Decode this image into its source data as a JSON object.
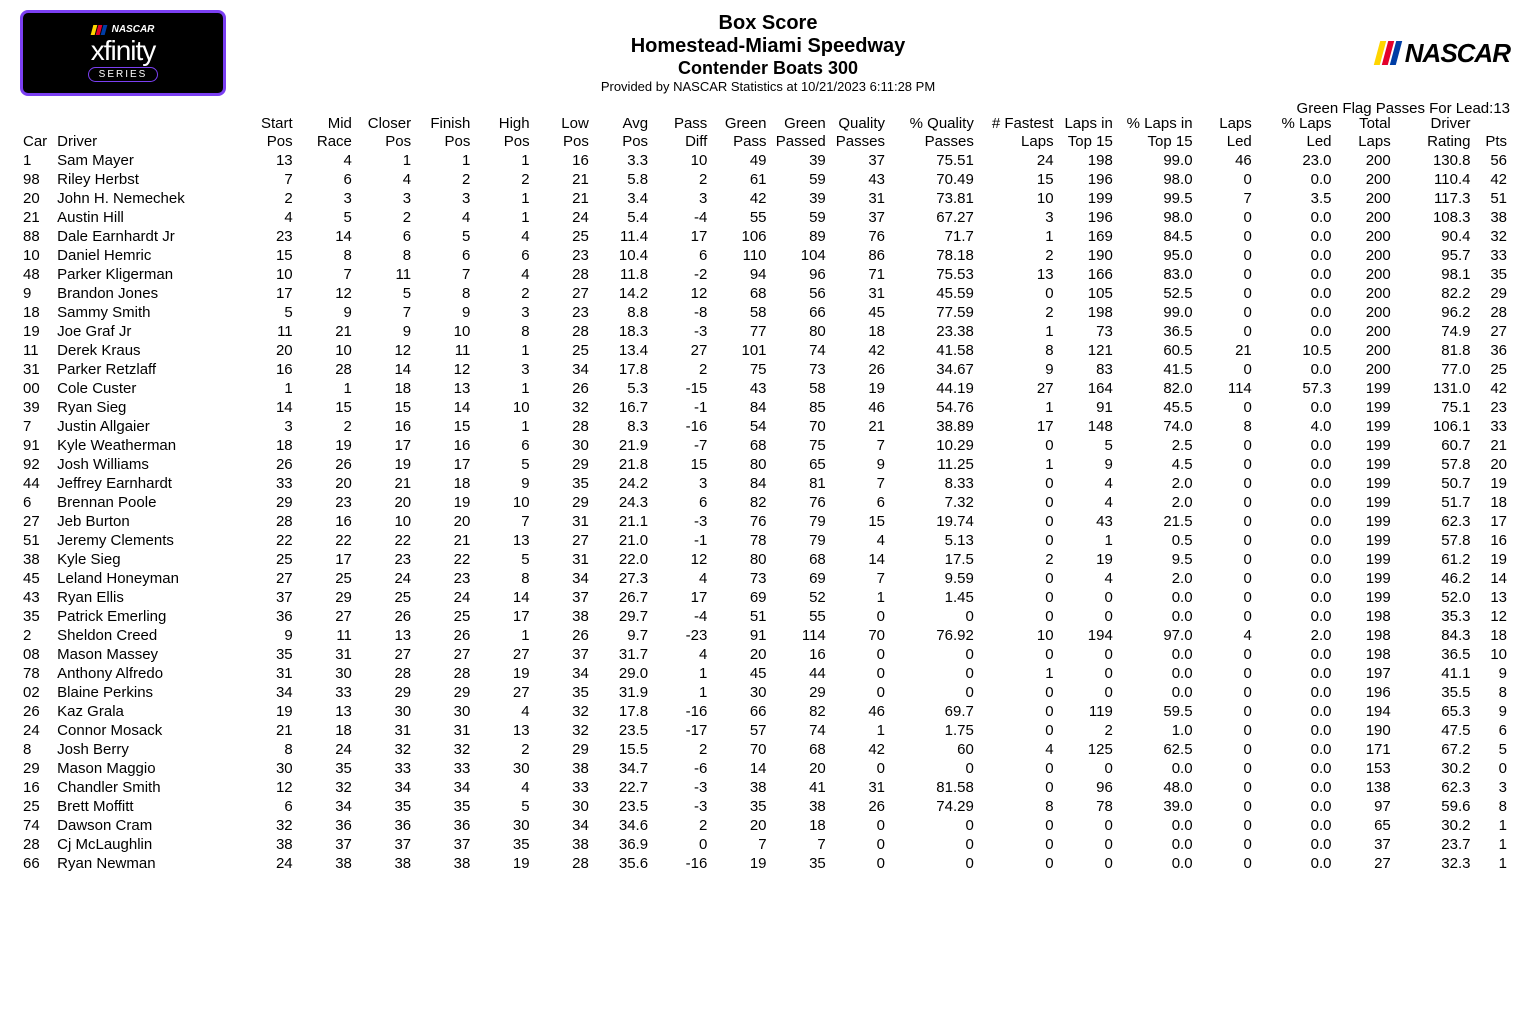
{
  "header": {
    "logo_left": {
      "top": "NASCAR",
      "mid": "xfinity",
      "bottom": "SERIES"
    },
    "title1": "Box Score",
    "title2": "Homestead-Miami Speedway",
    "title3": "Contender Boats 300",
    "provided": "Provided by NASCAR Statistics at 10/21/2023 6:11:28 PM",
    "logo_right": "NASCAR",
    "green_flag_label": "Green Flag Passes For Lead:",
    "green_flag_value": "13",
    "bar_colors": [
      "#ffd500",
      "#e4002b",
      "#003da5"
    ]
  },
  "columns": [
    {
      "l1": "",
      "l2": "Car",
      "cls": "col-car left"
    },
    {
      "l1": "",
      "l2": "Driver",
      "cls": "col-driver left"
    },
    {
      "l1": "Start",
      "l2": "Pos",
      "cls": "col-num"
    },
    {
      "l1": "Mid",
      "l2": "Race",
      "cls": "col-num"
    },
    {
      "l1": "Closer",
      "l2": "Pos",
      "cls": "col-num"
    },
    {
      "l1": "Finish",
      "l2": "Pos",
      "cls": "col-num"
    },
    {
      "l1": "High",
      "l2": "Pos",
      "cls": "col-num"
    },
    {
      "l1": "Low",
      "l2": "Pos",
      "cls": "col-num"
    },
    {
      "l1": "Avg",
      "l2": "Pos",
      "cls": "col-num"
    },
    {
      "l1": "Pass",
      "l2": "Diff",
      "cls": "col-num"
    },
    {
      "l1": "Green",
      "l2": "Pass",
      "cls": "col-num"
    },
    {
      "l1": "Green",
      "l2": "Passed",
      "cls": "col-num"
    },
    {
      "l1": "Quality",
      "l2": "Passes",
      "cls": "col-num"
    },
    {
      "l1": "% Quality",
      "l2": "Passes",
      "cls": "col-wider"
    },
    {
      "l1": "# Fastest",
      "l2": "Laps",
      "cls": "col-wide"
    },
    {
      "l1": "Laps in",
      "l2": "Top 15",
      "cls": "col-num"
    },
    {
      "l1": "% Laps in",
      "l2": "Top 15",
      "cls": "col-wide"
    },
    {
      "l1": "Laps",
      "l2": "Led",
      "cls": "col-num"
    },
    {
      "l1": "% Laps",
      "l2": "Led",
      "cls": "col-wide"
    },
    {
      "l1": "Total",
      "l2": "Laps",
      "cls": "col-num"
    },
    {
      "l1": "Driver",
      "l2": "Rating",
      "cls": "col-wide"
    },
    {
      "l1": "",
      "l2": "Pts",
      "cls": "col-pts"
    }
  ],
  "rows": [
    [
      "1",
      "Sam Mayer",
      "13",
      "4",
      "1",
      "1",
      "1",
      "16",
      "3.3",
      "10",
      "49",
      "39",
      "37",
      "75.51",
      "24",
      "198",
      "99.0",
      "46",
      "23.0",
      "200",
      "130.8",
      "56"
    ],
    [
      "98",
      "Riley Herbst",
      "7",
      "6",
      "4",
      "2",
      "2",
      "21",
      "5.8",
      "2",
      "61",
      "59",
      "43",
      "70.49",
      "15",
      "196",
      "98.0",
      "0",
      "0.0",
      "200",
      "110.4",
      "42"
    ],
    [
      "20",
      "John H. Nemechek",
      "2",
      "3",
      "3",
      "3",
      "1",
      "21",
      "3.4",
      "3",
      "42",
      "39",
      "31",
      "73.81",
      "10",
      "199",
      "99.5",
      "7",
      "3.5",
      "200",
      "117.3",
      "51"
    ],
    [
      "21",
      "Austin Hill",
      "4",
      "5",
      "2",
      "4",
      "1",
      "24",
      "5.4",
      "-4",
      "55",
      "59",
      "37",
      "67.27",
      "3",
      "196",
      "98.0",
      "0",
      "0.0",
      "200",
      "108.3",
      "38"
    ],
    [
      "88",
      "Dale Earnhardt Jr",
      "23",
      "14",
      "6",
      "5",
      "4",
      "25",
      "11.4",
      "17",
      "106",
      "89",
      "76",
      "71.7",
      "1",
      "169",
      "84.5",
      "0",
      "0.0",
      "200",
      "90.4",
      "32"
    ],
    [
      "10",
      "Daniel Hemric",
      "15",
      "8",
      "8",
      "6",
      "6",
      "23",
      "10.4",
      "6",
      "110",
      "104",
      "86",
      "78.18",
      "2",
      "190",
      "95.0",
      "0",
      "0.0",
      "200",
      "95.7",
      "33"
    ],
    [
      "48",
      "Parker Kligerman",
      "10",
      "7",
      "11",
      "7",
      "4",
      "28",
      "11.8",
      "-2",
      "94",
      "96",
      "71",
      "75.53",
      "13",
      "166",
      "83.0",
      "0",
      "0.0",
      "200",
      "98.1",
      "35"
    ],
    [
      "9",
      "Brandon Jones",
      "17",
      "12",
      "5",
      "8",
      "2",
      "27",
      "14.2",
      "12",
      "68",
      "56",
      "31",
      "45.59",
      "0",
      "105",
      "52.5",
      "0",
      "0.0",
      "200",
      "82.2",
      "29"
    ],
    [
      "18",
      "Sammy Smith",
      "5",
      "9",
      "7",
      "9",
      "3",
      "23",
      "8.8",
      "-8",
      "58",
      "66",
      "45",
      "77.59",
      "2",
      "198",
      "99.0",
      "0",
      "0.0",
      "200",
      "96.2",
      "28"
    ],
    [
      "19",
      "Joe Graf Jr",
      "11",
      "21",
      "9",
      "10",
      "8",
      "28",
      "18.3",
      "-3",
      "77",
      "80",
      "18",
      "23.38",
      "1",
      "73",
      "36.5",
      "0",
      "0.0",
      "200",
      "74.9",
      "27"
    ],
    [
      "11",
      "Derek Kraus",
      "20",
      "10",
      "12",
      "11",
      "1",
      "25",
      "13.4",
      "27",
      "101",
      "74",
      "42",
      "41.58",
      "8",
      "121",
      "60.5",
      "21",
      "10.5",
      "200",
      "81.8",
      "36"
    ],
    [
      "31",
      "Parker Retzlaff",
      "16",
      "28",
      "14",
      "12",
      "3",
      "34",
      "17.8",
      "2",
      "75",
      "73",
      "26",
      "34.67",
      "9",
      "83",
      "41.5",
      "0",
      "0.0",
      "200",
      "77.0",
      "25"
    ],
    [
      "00",
      "Cole Custer",
      "1",
      "1",
      "18",
      "13",
      "1",
      "26",
      "5.3",
      "-15",
      "43",
      "58",
      "19",
      "44.19",
      "27",
      "164",
      "82.0",
      "114",
      "57.3",
      "199",
      "131.0",
      "42"
    ],
    [
      "39",
      "Ryan Sieg",
      "14",
      "15",
      "15",
      "14",
      "10",
      "32",
      "16.7",
      "-1",
      "84",
      "85",
      "46",
      "54.76",
      "1",
      "91",
      "45.5",
      "0",
      "0.0",
      "199",
      "75.1",
      "23"
    ],
    [
      "7",
      "Justin Allgaier",
      "3",
      "2",
      "16",
      "15",
      "1",
      "28",
      "8.3",
      "-16",
      "54",
      "70",
      "21",
      "38.89",
      "17",
      "148",
      "74.0",
      "8",
      "4.0",
      "199",
      "106.1",
      "33"
    ],
    [
      "91",
      "Kyle Weatherman",
      "18",
      "19",
      "17",
      "16",
      "6",
      "30",
      "21.9",
      "-7",
      "68",
      "75",
      "7",
      "10.29",
      "0",
      "5",
      "2.5",
      "0",
      "0.0",
      "199",
      "60.7",
      "21"
    ],
    [
      "92",
      "Josh Williams",
      "26",
      "26",
      "19",
      "17",
      "5",
      "29",
      "21.8",
      "15",
      "80",
      "65",
      "9",
      "11.25",
      "1",
      "9",
      "4.5",
      "0",
      "0.0",
      "199",
      "57.8",
      "20"
    ],
    [
      "44",
      "Jeffrey Earnhardt",
      "33",
      "20",
      "21",
      "18",
      "9",
      "35",
      "24.2",
      "3",
      "84",
      "81",
      "7",
      "8.33",
      "0",
      "4",
      "2.0",
      "0",
      "0.0",
      "199",
      "50.7",
      "19"
    ],
    [
      "6",
      "Brennan Poole",
      "29",
      "23",
      "20",
      "19",
      "10",
      "29",
      "24.3",
      "6",
      "82",
      "76",
      "6",
      "7.32",
      "0",
      "4",
      "2.0",
      "0",
      "0.0",
      "199",
      "51.7",
      "18"
    ],
    [
      "27",
      "Jeb Burton",
      "28",
      "16",
      "10",
      "20",
      "7",
      "31",
      "21.1",
      "-3",
      "76",
      "79",
      "15",
      "19.74",
      "0",
      "43",
      "21.5",
      "0",
      "0.0",
      "199",
      "62.3",
      "17"
    ],
    [
      "51",
      "Jeremy Clements",
      "22",
      "22",
      "22",
      "21",
      "13",
      "27",
      "21.0",
      "-1",
      "78",
      "79",
      "4",
      "5.13",
      "0",
      "1",
      "0.5",
      "0",
      "0.0",
      "199",
      "57.8",
      "16"
    ],
    [
      "38",
      "Kyle Sieg",
      "25",
      "17",
      "23",
      "22",
      "5",
      "31",
      "22.0",
      "12",
      "80",
      "68",
      "14",
      "17.5",
      "2",
      "19",
      "9.5",
      "0",
      "0.0",
      "199",
      "61.2",
      "19"
    ],
    [
      "45",
      "Leland Honeyman",
      "27",
      "25",
      "24",
      "23",
      "8",
      "34",
      "27.3",
      "4",
      "73",
      "69",
      "7",
      "9.59",
      "0",
      "4",
      "2.0",
      "0",
      "0.0",
      "199",
      "46.2",
      "14"
    ],
    [
      "43",
      "Ryan Ellis",
      "37",
      "29",
      "25",
      "24",
      "14",
      "37",
      "26.7",
      "17",
      "69",
      "52",
      "1",
      "1.45",
      "0",
      "0",
      "0.0",
      "0",
      "0.0",
      "199",
      "52.0",
      "13"
    ],
    [
      "35",
      "Patrick Emerling",
      "36",
      "27",
      "26",
      "25",
      "17",
      "38",
      "29.7",
      "-4",
      "51",
      "55",
      "0",
      "0",
      "0",
      "0",
      "0.0",
      "0",
      "0.0",
      "198",
      "35.3",
      "12"
    ],
    [
      "2",
      "Sheldon Creed",
      "9",
      "11",
      "13",
      "26",
      "1",
      "26",
      "9.7",
      "-23",
      "91",
      "114",
      "70",
      "76.92",
      "10",
      "194",
      "97.0",
      "4",
      "2.0",
      "198",
      "84.3",
      "18"
    ],
    [
      "08",
      "Mason Massey",
      "35",
      "31",
      "27",
      "27",
      "27",
      "37",
      "31.7",
      "4",
      "20",
      "16",
      "0",
      "0",
      "0",
      "0",
      "0.0",
      "0",
      "0.0",
      "198",
      "36.5",
      "10"
    ],
    [
      "78",
      "Anthony Alfredo",
      "31",
      "30",
      "28",
      "28",
      "19",
      "34",
      "29.0",
      "1",
      "45",
      "44",
      "0",
      "0",
      "1",
      "0",
      "0.0",
      "0",
      "0.0",
      "197",
      "41.1",
      "9"
    ],
    [
      "02",
      "Blaine Perkins",
      "34",
      "33",
      "29",
      "29",
      "27",
      "35",
      "31.9",
      "1",
      "30",
      "29",
      "0",
      "0",
      "0",
      "0",
      "0.0",
      "0",
      "0.0",
      "196",
      "35.5",
      "8"
    ],
    [
      "26",
      "Kaz Grala",
      "19",
      "13",
      "30",
      "30",
      "4",
      "32",
      "17.8",
      "-16",
      "66",
      "82",
      "46",
      "69.7",
      "0",
      "119",
      "59.5",
      "0",
      "0.0",
      "194",
      "65.3",
      "9"
    ],
    [
      "24",
      "Connor Mosack",
      "21",
      "18",
      "31",
      "31",
      "13",
      "32",
      "23.5",
      "-17",
      "57",
      "74",
      "1",
      "1.75",
      "0",
      "2",
      "1.0",
      "0",
      "0.0",
      "190",
      "47.5",
      "6"
    ],
    [
      "8",
      "Josh Berry",
      "8",
      "24",
      "32",
      "32",
      "2",
      "29",
      "15.5",
      "2",
      "70",
      "68",
      "42",
      "60",
      "4",
      "125",
      "62.5",
      "0",
      "0.0",
      "171",
      "67.2",
      "5"
    ],
    [
      "29",
      "Mason Maggio",
      "30",
      "35",
      "33",
      "33",
      "30",
      "38",
      "34.7",
      "-6",
      "14",
      "20",
      "0",
      "0",
      "0",
      "0",
      "0.0",
      "0",
      "0.0",
      "153",
      "30.2",
      "0"
    ],
    [
      "16",
      "Chandler Smith",
      "12",
      "32",
      "34",
      "34",
      "4",
      "33",
      "22.7",
      "-3",
      "38",
      "41",
      "31",
      "81.58",
      "0",
      "96",
      "48.0",
      "0",
      "0.0",
      "138",
      "62.3",
      "3"
    ],
    [
      "25",
      "Brett Moffitt",
      "6",
      "34",
      "35",
      "35",
      "5",
      "30",
      "23.5",
      "-3",
      "35",
      "38",
      "26",
      "74.29",
      "8",
      "78",
      "39.0",
      "0",
      "0.0",
      "97",
      "59.6",
      "8"
    ],
    [
      "74",
      "Dawson Cram",
      "32",
      "36",
      "36",
      "36",
      "30",
      "34",
      "34.6",
      "2",
      "20",
      "18",
      "0",
      "0",
      "0",
      "0",
      "0.0",
      "0",
      "0.0",
      "65",
      "30.2",
      "1"
    ],
    [
      "28",
      "Cj McLaughlin",
      "38",
      "37",
      "37",
      "37",
      "35",
      "38",
      "36.9",
      "0",
      "7",
      "7",
      "0",
      "0",
      "0",
      "0",
      "0.0",
      "0",
      "0.0",
      "37",
      "23.7",
      "1"
    ],
    [
      "66",
      "Ryan Newman",
      "24",
      "38",
      "38",
      "38",
      "19",
      "28",
      "35.6",
      "-16",
      "19",
      "35",
      "0",
      "0",
      "0",
      "0",
      "0.0",
      "0",
      "0.0",
      "27",
      "32.3",
      "1"
    ]
  ]
}
